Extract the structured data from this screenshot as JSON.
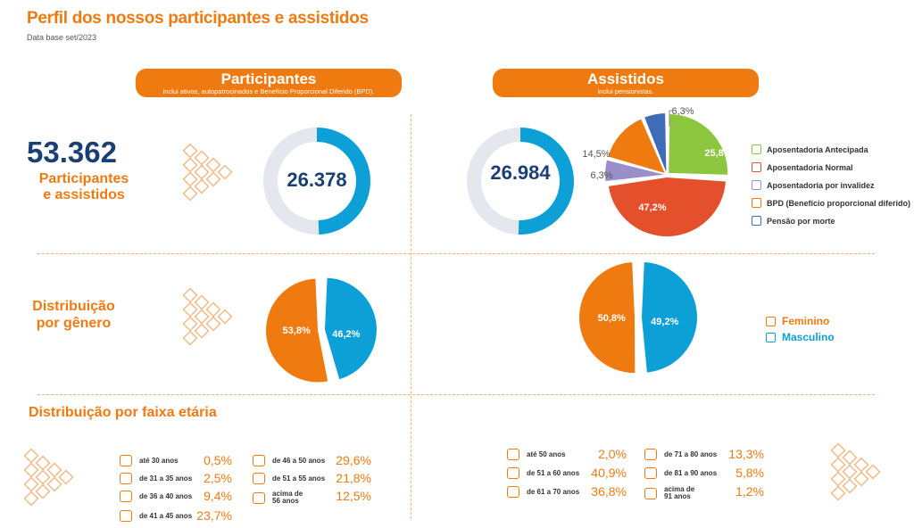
{
  "header": {
    "title": "Perfil dos nossos participantes e assistidos",
    "subtitle": "Data base set/2023"
  },
  "colors": {
    "accent": "#ef7a10",
    "navy": "#1c3f73",
    "blue": "#0da0d6",
    "grey_ring": "#e4e8ee",
    "green": "#8cc63e",
    "red": "#e4502c",
    "purple": "#9a8fc8",
    "orange": "#ef7a10",
    "dark_blue": "#3f6cb6"
  },
  "participantes": {
    "title": "Participantes",
    "note": "inclui ativos, autopatrocinados e Benefício Proporcional Diferido (BPD)."
  },
  "assistidos": {
    "title": "Assistidos",
    "note": "inclui pensionistas."
  },
  "total": {
    "value": "53.362",
    "line1": "Participantes",
    "line2": "e assistidos"
  },
  "genero": {
    "line1": "Distribuição",
    "line2": "por gênero",
    "legend": [
      "Feminino",
      "Masculino"
    ]
  },
  "faixa_etaria_title": "Distribuição por faixa etária",
  "chart_data": [
    {
      "type": "pie",
      "name": "participantes_total",
      "center_label": "26.378",
      "fraction_shown": 0.494
    },
    {
      "type": "pie",
      "name": "assistidos_total",
      "center_label": "26.984",
      "fraction_shown": 0.506
    },
    {
      "type": "pie",
      "name": "assistidos_tipo",
      "slices": [
        {
          "label": "Aposentadoria Antecipada",
          "value": 25.8,
          "display": "25,8%",
          "color": "#8cc63e"
        },
        {
          "label": "Aposentadoria Normal",
          "value": 47.2,
          "display": "47,2%",
          "color": "#e4502c"
        },
        {
          "label": "Aposentadoria por invalidez",
          "value": 6.3,
          "display": "6,3%",
          "color": "#9a8fc8"
        },
        {
          "label": "BPD (Benefício proporcional diferido)",
          "value": 14.5,
          "display": "14,5%",
          "color": "#ef7a10"
        },
        {
          "label": "Pensão por morte",
          "value": 6.3,
          "display": "6,3%",
          "color": "#3f6cb6"
        }
      ]
    },
    {
      "type": "pie",
      "name": "participantes_genero",
      "slices": [
        {
          "label": "Feminino",
          "value": 53.8,
          "display": "53,8%",
          "color": "#ef7a10"
        },
        {
          "label": "Masculino",
          "value": 46.2,
          "display": "46,2%",
          "color": "#0da0d6"
        }
      ]
    },
    {
      "type": "pie",
      "name": "assistidos_genero",
      "slices": [
        {
          "label": "Feminino",
          "value": 50.8,
          "display": "50,8%",
          "color": "#ef7a10"
        },
        {
          "label": "Masculino",
          "value": 49.2,
          "display": "49,2%",
          "color": "#0da0d6"
        }
      ]
    },
    {
      "type": "table",
      "name": "faixa_etaria_participantes",
      "rows": [
        {
          "label": "até 30 anos",
          "value": "0,5%"
        },
        {
          "label": "de 31 a 35 anos",
          "value": "2,5%"
        },
        {
          "label": "de 36 a 40 anos",
          "value": "9,4%"
        },
        {
          "label": "de 41 a 45 anos",
          "value": "23,7%"
        },
        {
          "label": "de 46 a 50 anos",
          "value": "29,6%"
        },
        {
          "label": "de 51 a 55 anos",
          "value": "21,8%"
        },
        {
          "label": "acima de 56 anos",
          "value": "12,5%"
        }
      ]
    },
    {
      "type": "table",
      "name": "faixa_etaria_assistidos",
      "rows": [
        {
          "label": "até 50 anos",
          "value": "2,0%"
        },
        {
          "label": "de 51 a 60 anos",
          "value": "40,9%"
        },
        {
          "label": "de 61 a 70 anos",
          "value": "36,8%"
        },
        {
          "label": "de 71 a 80 anos",
          "value": "13,3%"
        },
        {
          "label": "de 81 a 90 anos",
          "value": "5,8%"
        },
        {
          "label": "acima de 91 anos",
          "value": "1,2%"
        }
      ]
    }
  ]
}
